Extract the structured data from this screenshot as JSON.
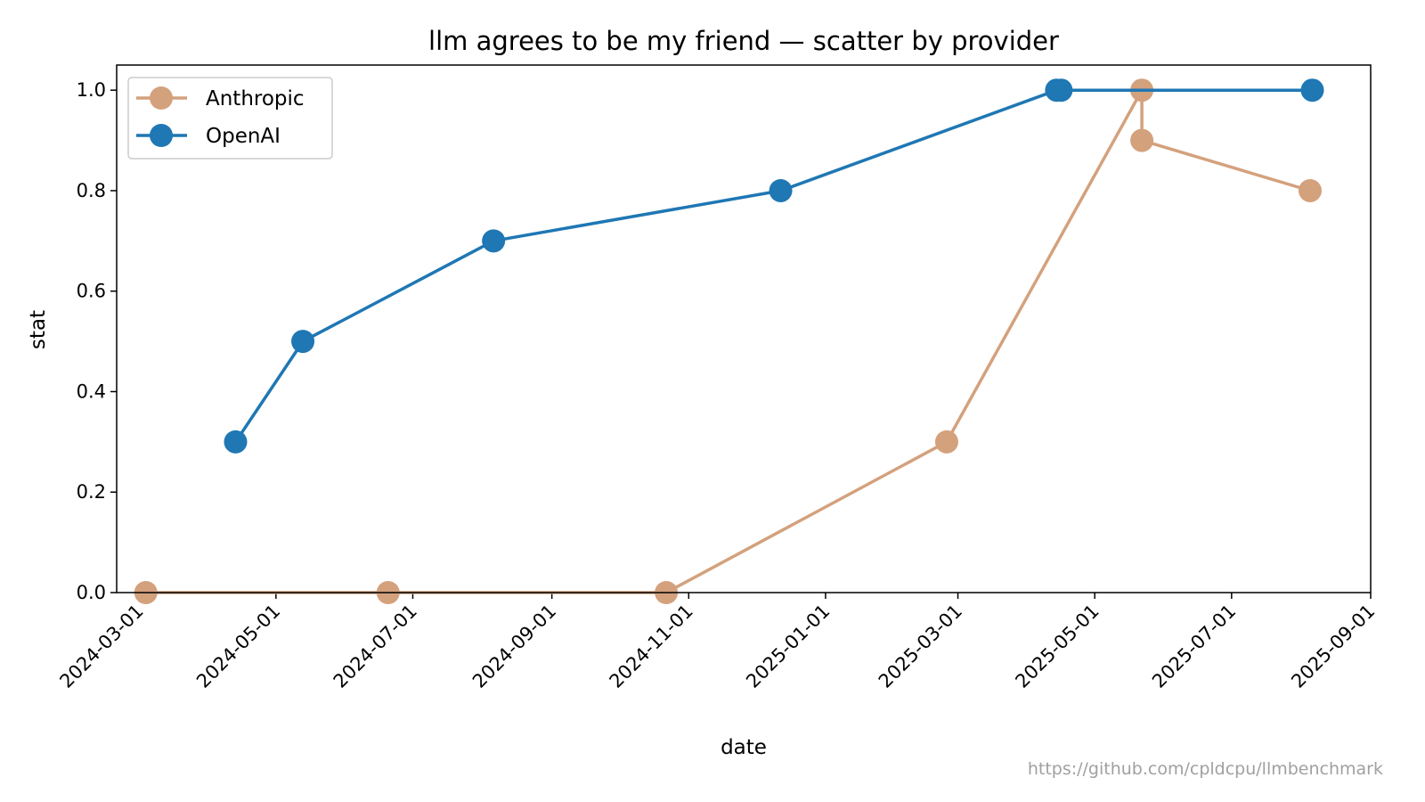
{
  "chart_data": {
    "type": "line",
    "title": "llm agrees to be my friend — scatter by provider",
    "xlabel": "date",
    "ylabel": "stat",
    "x_range": [
      "2024-02-20",
      "2025-09-01"
    ],
    "ylim": [
      0,
      1.05
    ],
    "x_ticks": [
      "2024-03-01",
      "2024-05-01",
      "2024-07-01",
      "2024-09-01",
      "2024-11-01",
      "2025-01-01",
      "2025-03-01",
      "2025-05-01",
      "2025-07-01",
      "2025-09-01"
    ],
    "y_ticks": [
      "0.0",
      "0.2",
      "0.4",
      "0.6",
      "0.8",
      "1.0"
    ],
    "y_tick_values": [
      0,
      0.2,
      0.4,
      0.6,
      0.8,
      1.0
    ],
    "grid": false,
    "legend_position": "top-left",
    "series": [
      {
        "name": "Anthropic",
        "color": "#d4a17d",
        "points": [
          {
            "x": "2024-03-04",
            "y": 0.0
          },
          {
            "x": "2024-06-20",
            "y": 0.0
          },
          {
            "x": "2024-10-22",
            "y": 0.0
          },
          {
            "x": "2025-02-24",
            "y": 0.3
          },
          {
            "x": "2025-05-22",
            "y": 1.0
          },
          {
            "x": "2025-05-22",
            "y": 0.9
          },
          {
            "x": "2025-08-05",
            "y": 0.8
          }
        ]
      },
      {
        "name": "OpenAI",
        "color": "#1f77b4",
        "points": [
          {
            "x": "2024-04-13",
            "y": 0.3
          },
          {
            "x": "2024-05-13",
            "y": 0.5
          },
          {
            "x": "2024-08-06",
            "y": 0.7
          },
          {
            "x": "2024-12-12",
            "y": 0.8
          },
          {
            "x": "2025-04-14",
            "y": 1.0
          },
          {
            "x": "2025-04-16",
            "y": 1.0
          },
          {
            "x": "2025-08-06",
            "y": 1.0
          }
        ]
      }
    ]
  },
  "footer": {
    "url": "https://github.com/cpldcpu/llmbenchmark"
  }
}
